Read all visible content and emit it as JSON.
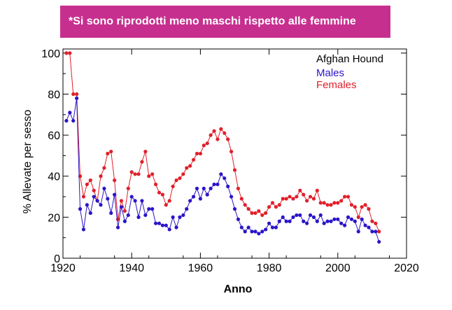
{
  "banner": {
    "text": "*Si sono riprodotti meno maschi rispetto alle femmine",
    "color": "#c72f8f"
  },
  "chart_data": {
    "type": "line",
    "title": "",
    "xlabel": "Anno",
    "ylabel": "% Allevate per sesso",
    "xlim": [
      1920,
      2020
    ],
    "ylim": [
      0,
      102
    ],
    "xticks": [
      1920,
      1940,
      1960,
      1980,
      2000,
      2020
    ],
    "yticks": [
      0,
      20,
      40,
      60,
      80,
      100
    ],
    "legend": {
      "title": "Afghan Hound",
      "position": "top-right"
    },
    "grid": false,
    "series": [
      {
        "name": "Males",
        "color": "#2a15c7",
        "x": [
          1921,
          1922,
          1923,
          1924,
          1925,
          1926,
          1927,
          1928,
          1929,
          1930,
          1931,
          1932,
          1933,
          1934,
          1935,
          1936,
          1937,
          1938,
          1939,
          1940,
          1941,
          1942,
          1943,
          1944,
          1945,
          1946,
          1947,
          1948,
          1949,
          1950,
          1951,
          1952,
          1953,
          1954,
          1955,
          1956,
          1957,
          1958,
          1959,
          1960,
          1961,
          1962,
          1963,
          1964,
          1965,
          1966,
          1967,
          1968,
          1969,
          1970,
          1971,
          1972,
          1973,
          1974,
          1975,
          1976,
          1977,
          1978,
          1979,
          1980,
          1981,
          1982,
          1983,
          1984,
          1985,
          1986,
          1987,
          1988,
          1989,
          1990,
          1991,
          1992,
          1993,
          1994,
          1995,
          1996,
          1997,
          1998,
          1999,
          2000,
          2001,
          2002,
          2003,
          2004,
          2005,
          2006,
          2007,
          2008,
          2009,
          2010,
          2011,
          2012
        ],
        "values": [
          67,
          71,
          67,
          78,
          24,
          14,
          26,
          22,
          30,
          28,
          26,
          34,
          29,
          22,
          31,
          15,
          25,
          18,
          21,
          30,
          28,
          20,
          28,
          21,
          24,
          24,
          17,
          17,
          16,
          16,
          14,
          20,
          15,
          20,
          21,
          24,
          28,
          30,
          34,
          29,
          34,
          31,
          34,
          36,
          36,
          41,
          39,
          35,
          30,
          24,
          19,
          15,
          13,
          15,
          13,
          13,
          12,
          13,
          14,
          17,
          15,
          15,
          18,
          20,
          18,
          18,
          20,
          21,
          21,
          18,
          17,
          21,
          20,
          18,
          21,
          17,
          18,
          18,
          19,
          19,
          17,
          16,
          20,
          19,
          18,
          13,
          19,
          16,
          15,
          13,
          13,
          8
        ]
      },
      {
        "name": "Females",
        "color": "#e0202a",
        "x": [
          1921,
          1922,
          1923,
          1924,
          1925,
          1926,
          1927,
          1928,
          1929,
          1930,
          1931,
          1932,
          1933,
          1934,
          1935,
          1936,
          1937,
          1938,
          1939,
          1940,
          1941,
          1942,
          1943,
          1944,
          1945,
          1946,
          1947,
          1948,
          1949,
          1950,
          1951,
          1952,
          1953,
          1954,
          1955,
          1956,
          1957,
          1958,
          1959,
          1960,
          1961,
          1962,
          1963,
          1964,
          1965,
          1966,
          1967,
          1968,
          1969,
          1970,
          1971,
          1972,
          1973,
          1974,
          1975,
          1976,
          1977,
          1978,
          1979,
          1980,
          1981,
          1982,
          1983,
          1984,
          1985,
          1986,
          1987,
          1988,
          1989,
          1990,
          1991,
          1992,
          1993,
          1994,
          1995,
          1996,
          1997,
          1998,
          1999,
          2000,
          2001,
          2002,
          2003,
          2004,
          2005,
          2006,
          2007,
          2008,
          2009,
          2010,
          2011,
          2012
        ],
        "values": [
          100,
          100,
          80,
          80,
          40,
          30,
          36,
          38,
          33,
          28,
          40,
          44,
          51,
          52,
          38,
          19,
          28,
          23,
          34,
          42,
          41,
          41,
          47,
          52,
          40,
          41,
          36,
          32,
          31,
          26,
          28,
          35,
          38,
          39,
          41,
          44,
          45,
          48,
          51,
          51,
          55,
          56,
          60,
          62,
          58,
          63,
          61,
          58,
          52,
          43,
          34,
          29,
          26,
          24,
          22,
          22,
          23,
          21,
          22,
          25,
          27,
          25,
          26,
          29,
          29,
          30,
          29,
          30,
          33,
          31,
          28,
          30,
          29,
          33,
          27,
          27,
          26,
          26,
          27,
          27,
          28,
          30,
          30,
          26,
          25,
          20,
          25,
          26,
          24,
          18,
          17,
          13
        ]
      }
    ]
  }
}
